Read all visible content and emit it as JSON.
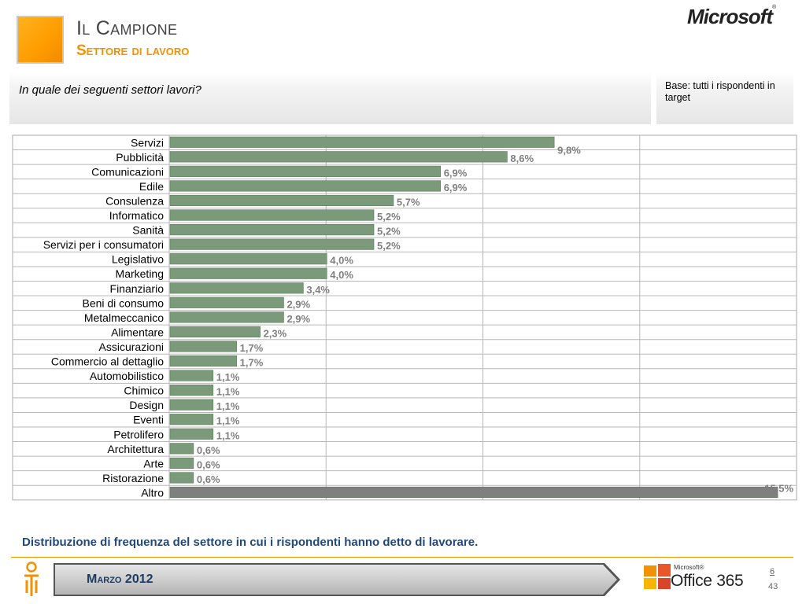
{
  "header": {
    "title": "Il Campione",
    "subtitle": "Settore di lavoro",
    "brand": "Microsoft",
    "brand_mark": "®"
  },
  "question": {
    "text": "In quale dei seguenti settori lavori?",
    "base": "Base: tutti i rispondenti in target"
  },
  "chart_data": {
    "type": "bar",
    "orientation": "horizontal",
    "categories": [
      "Servizi",
      "Pubblicità",
      "Comunicazioni",
      "Edile",
      "Consulenza",
      "Informatico",
      "Sanità",
      "Servizi per i consumatori",
      "Legislativo",
      "Marketing",
      "Finanziario",
      "Beni di consumo",
      "Metalmeccanico",
      "Alimentare",
      "Assicurazioni",
      "Commercio al dettaglio",
      "Automobilistico",
      "Chimico",
      "Design",
      "Eventi",
      "Petrolifero",
      "Architettura",
      "Arte",
      "Ristorazione",
      "Altro"
    ],
    "values": [
      9.8,
      8.6,
      6.9,
      6.9,
      5.7,
      5.2,
      5.2,
      5.2,
      4.0,
      4.0,
      3.4,
      2.9,
      2.9,
      2.3,
      1.7,
      1.7,
      1.1,
      1.1,
      1.1,
      1.1,
      1.1,
      0.6,
      0.6,
      0.6,
      15.5
    ],
    "labels": [
      "9,8%",
      "8,6%",
      "6,9%",
      "6,9%",
      "5,7%",
      "5,2%",
      "5,2%",
      "5,2%",
      "4,0%",
      "4,0%",
      "3,4%",
      "2,9%",
      "2,9%",
      "2,3%",
      "1,7%",
      "1,7%",
      "1,1%",
      "1,1%",
      "1,1%",
      "1,1%",
      "1,1%",
      "0,6%",
      "0,6%",
      "0,6%",
      "15,5%"
    ],
    "xlim": [
      0,
      16
    ],
    "grid": true,
    "colors": {
      "bar": "#7a9a7a",
      "bar_highlight": "#7f7f7f",
      "label": "#7f7f7f",
      "grid": "#b8b8b8"
    }
  },
  "footer": {
    "caption": "Distribuzione di frequenza del settore in cui i rispondenti hanno detto di lavorare.",
    "date": "Marzo 2012",
    "product_small": "Microsoft®",
    "product": "Office 365",
    "page": "6",
    "total_pages": "43"
  },
  "colors": {
    "accent": "#f39200",
    "caption": "#1f497d"
  }
}
